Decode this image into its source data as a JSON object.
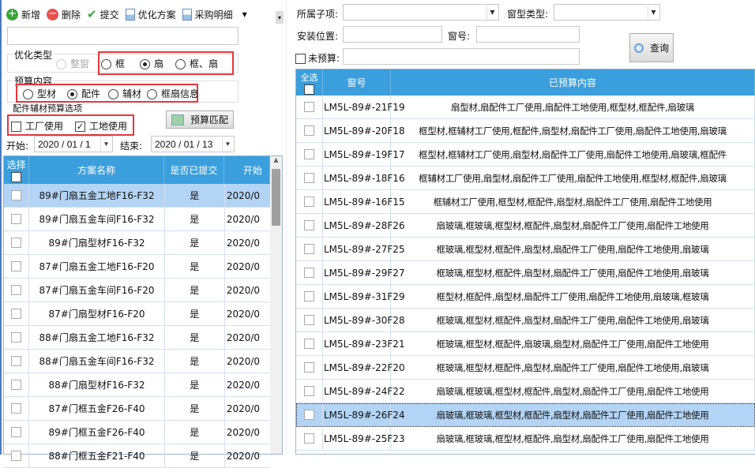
{
  "toolbar": {
    "add": "新增",
    "delete": "删除",
    "submit": "提交",
    "optimize": "优化方案",
    "purchase": "采购明细"
  },
  "colors": {
    "header": "#3a9fdc",
    "selected": "#b3d4f5",
    "highlight_box": "#e8363a"
  },
  "left": {
    "name_input": "",
    "opt_type": {
      "legend": "优化类型",
      "options": [
        "整窗",
        "框",
        "扇",
        "框、扇"
      ],
      "selected": "扇",
      "disabled": "整窗"
    },
    "budget": {
      "legend": "预算内容",
      "options": [
        "型材",
        "配件",
        "辅材",
        "框扇信息"
      ],
      "selected": "配件"
    },
    "fitting": {
      "legend": "配件辅材预算选项",
      "factory": "工厂使用",
      "factory_checked": false,
      "site": "工地使用",
      "site_checked": true
    },
    "match_button": "预算匹配",
    "start_label": "开始:",
    "start_value": "2020 / 01 / 1",
    "end_label": "结束:",
    "end_value": "2020 / 01 / 13",
    "grid": {
      "headers": [
        "选择",
        "方案名称",
        "是否已提交",
        "开始"
      ],
      "rows": [
        {
          "name": "89#门扇五金工地F16-F32",
          "submitted": "是",
          "start": "2020/0"
        },
        {
          "name": "89#门扇五金车间F16-F32",
          "submitted": "是",
          "start": "2020/0"
        },
        {
          "name": "89#门扇型材F16-F32",
          "submitted": "是",
          "start": "2020/0"
        },
        {
          "name": "87#门扇五金工地F16-F20",
          "submitted": "是",
          "start": "2020/0"
        },
        {
          "name": "87#门扇五金车间F16-F20",
          "submitted": "是",
          "start": "2020/0"
        },
        {
          "name": "87#门扇型材F16-F20",
          "submitted": "是",
          "start": "2020/0"
        },
        {
          "name": "88#门扇五金工地F16-F32",
          "submitted": "是",
          "start": "2020/0"
        },
        {
          "name": "88#门扇五金车间F16-F32",
          "submitted": "是",
          "start": "2020/0"
        },
        {
          "name": "88#门扇型材F16-F32",
          "submitted": "是",
          "start": "2020/0"
        },
        {
          "name": "87#门框五金F26-F40",
          "submitted": "是",
          "start": "2020/0"
        },
        {
          "name": "89#门框五金F26-F40",
          "submitted": "是",
          "start": "2020/0"
        },
        {
          "name": "88#门框五金F21-F40",
          "submitted": "是",
          "start": "2020/0"
        }
      ]
    }
  },
  "right": {
    "subitem_label": "所属子项:",
    "subitem_value": "",
    "wintype_label": "窗型类型:",
    "wintype_value": "",
    "location_label": "安装位置:",
    "location_value": "",
    "winno_label": "窗号:",
    "winno_value": "",
    "unbudget_label": "未预算:",
    "unbudget_value": "",
    "query_button": "查询",
    "grid": {
      "headers": [
        "全选",
        "窗号",
        "已预算内容"
      ],
      "rows": [
        {
          "no": "LM5L-89#-21F19",
          "content": "扇型材,扇配件工厂使用,扇配件工地使用,框型材,框配件,扇玻璃"
        },
        {
          "no": "LM5L-89#-20F18",
          "content": "框型材,框辅材工厂使用,框配件,扇型材,扇配件工厂使用,扇配件工地使用,扇玻璃"
        },
        {
          "no": "LM5L-89#-19F17",
          "content": "框型材,框辅材工厂使用,扇型材,扇配件工厂使用,扇配件工地使用,扇玻璃,框配件"
        },
        {
          "no": "LM5L-89#-18F16",
          "content": "框辅材工厂使用,扇型材,扇配件工厂使用,扇配件工地使用,框型材,框配件,扇玻璃"
        },
        {
          "no": "LM5L-89#-16F15",
          "content": "框辅材工厂使用,框型材,框配件,扇型材,扇配件工厂使用,扇配件工地使用"
        },
        {
          "no": "LM5L-89#-28F26",
          "content": "扇玻璃,框玻璃,框型材,框配件,扇型材,扇配件工厂使用,扇配件工地使用"
        },
        {
          "no": "LM5L-89#-27F25",
          "content": "框玻璃,框型材,框配件,扇型材,扇配件工厂使用,扇配件工地使用,扇玻璃"
        },
        {
          "no": "LM5L-89#-29F27",
          "content": "框玻璃,框型材,框配件,扇型材,扇配件工厂使用,扇配件工地使用,扇玻璃"
        },
        {
          "no": "LM5L-89#-31F29",
          "content": "框型材,框配件,扇型材,扇配件工厂使用,扇配件工地使用,扇玻璃,框玻璃"
        },
        {
          "no": "LM5L-89#-30F28",
          "content": "框玻璃,框型材,框配件,扇型材,扇配件工厂使用,扇配件工地使用,扇玻璃"
        },
        {
          "no": "LM5L-89#-23F21",
          "content": "框玻璃,框型材,框配件,扇玻璃,扇型材,扇配件工厂使用,扇配件工地使用"
        },
        {
          "no": "LM5L-89#-22F20",
          "content": "框玻璃,框型材,框配件,扇型材,扇配件工厂使用,扇配件工地使用,扇玻璃"
        },
        {
          "no": "LM5L-89#-24F22",
          "content": "扇玻璃,框玻璃,框型材,框配件,扇型材,扇配件工厂使用,扇配件工地使用"
        },
        {
          "no": "LM5L-89#-26F24",
          "content": "扇玻璃,框玻璃,框型材,框配件,扇型材,扇配件工厂使用,扇配件工地使用"
        },
        {
          "no": "LM5L-89#-25F23",
          "content": "扇玻璃,框玻璃,框型材,框配件,扇型材,扇配件工厂使用,扇配件工地使用"
        }
      ]
    }
  }
}
